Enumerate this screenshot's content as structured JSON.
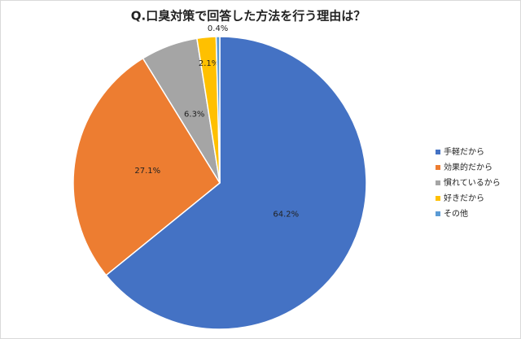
{
  "chart_data": {
    "type": "pie",
    "title": "Q.口臭対策で回答した方法を行う理由は？",
    "categories": [
      "手軽だから",
      "効果的だから",
      "慣れているから",
      "好きだから",
      "その他"
    ],
    "values": [
      64.2,
      27.1,
      6.3,
      2.1,
      0.4
    ],
    "value_labels": [
      "64.2%",
      "27.1%",
      "6.3%",
      "2.1%",
      "0.4%"
    ],
    "colors": [
      "#4472c4",
      "#ed7d31",
      "#a5a5a5",
      "#ffc000",
      "#5b9bd5"
    ],
    "legend": "right"
  }
}
